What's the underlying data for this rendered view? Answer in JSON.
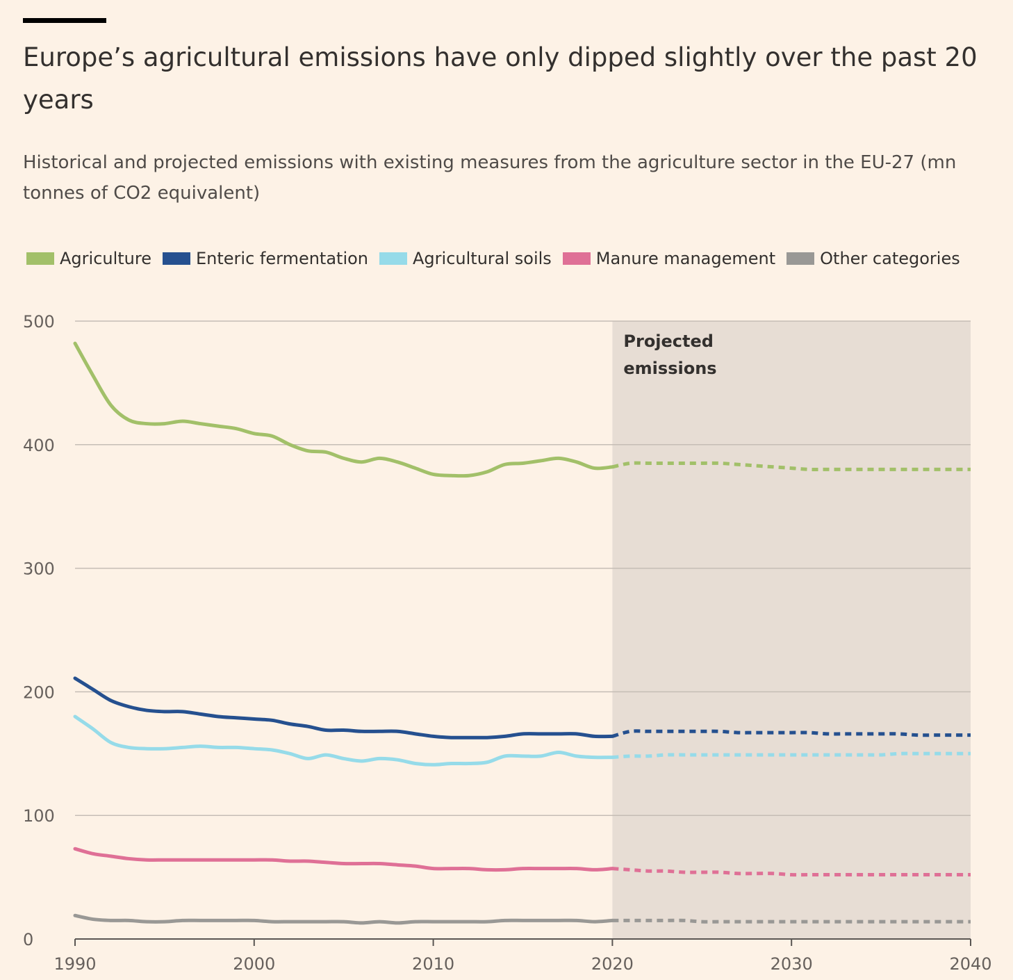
{
  "header": {
    "title": "Europe’s agricultural emissions have only dipped slightly over the past 20 years",
    "subtitle": "Historical and projected emissions with existing measures from the agriculture sector in the EU-27 (mn tonnes of CO2 equivalent)"
  },
  "chart_data": {
    "type": "line",
    "title": "Europe’s agricultural emissions have only dipped slightly over the past 20 years",
    "subtitle": "Historical and projected emissions with existing measures from the agriculture sector in the EU-27 (mn tonnes of CO2 equivalent)",
    "xlabel": "",
    "ylabel": "",
    "xlim": [
      1990,
      2040
    ],
    "ylim": [
      0,
      500
    ],
    "x_ticks": [
      "1990",
      "2000",
      "2010",
      "2020",
      "2030",
      "2040"
    ],
    "y_ticks": [
      "0",
      "100",
      "200",
      "300",
      "400",
      "500"
    ],
    "grid": "horizontal",
    "legend_position": "top-left",
    "projection_start": 2020,
    "projection_end": 2040,
    "annotation": "Projected emissions",
    "historical_x": [
      1990,
      1991,
      1992,
      1993,
      1994,
      1995,
      1996,
      1997,
      1998,
      1999,
      2000,
      2001,
      2002,
      2003,
      2004,
      2005,
      2006,
      2007,
      2008,
      2009,
      2010,
      2011,
      2012,
      2013,
      2014,
      2015,
      2016,
      2017,
      2018,
      2019,
      2020
    ],
    "projected_x": [
      2020,
      2021,
      2022,
      2023,
      2024,
      2025,
      2026,
      2027,
      2028,
      2029,
      2030,
      2031,
      2032,
      2033,
      2034,
      2035,
      2036,
      2037,
      2038,
      2039,
      2040
    ],
    "series": [
      {
        "name": "Agriculture",
        "color": "#a2c069",
        "historical": [
          482,
          456,
          432,
          420,
          417,
          417,
          419,
          417,
          415,
          413,
          409,
          407,
          400,
          395,
          394,
          389,
          386,
          389,
          386,
          381,
          376,
          375,
          375,
          378,
          384,
          385,
          387,
          389,
          386,
          381,
          382
        ],
        "projected": [
          382,
          385,
          385,
          385,
          385,
          385,
          385,
          384,
          383,
          382,
          381,
          380,
          380,
          380,
          380,
          380,
          380,
          380,
          380,
          380,
          380
        ]
      },
      {
        "name": "Enteric fermentation",
        "color": "#25508f",
        "historical": [
          211,
          202,
          193,
          188,
          185,
          184,
          184,
          182,
          180,
          179,
          178,
          177,
          174,
          172,
          169,
          169,
          168,
          168,
          168,
          166,
          164,
          163,
          163,
          163,
          164,
          166,
          166,
          166,
          166,
          164,
          164
        ],
        "projected": [
          164,
          168,
          168,
          168,
          168,
          168,
          168,
          167,
          167,
          167,
          167,
          167,
          166,
          166,
          166,
          166,
          166,
          165,
          165,
          165,
          165
        ]
      },
      {
        "name": "Agricultural soils",
        "color": "#96dbe9",
        "historical": [
          180,
          170,
          159,
          155,
          154,
          154,
          155,
          156,
          155,
          155,
          154,
          153,
          150,
          146,
          149,
          146,
          144,
          146,
          145,
          142,
          141,
          142,
          142,
          143,
          148,
          148,
          148,
          151,
          148,
          147,
          147
        ],
        "projected": [
          147,
          148,
          148,
          149,
          149,
          149,
          149,
          149,
          149,
          149,
          149,
          149,
          149,
          149,
          149,
          149,
          150,
          150,
          150,
          150,
          150
        ]
      },
      {
        "name": "Manure management",
        "color": "#df7096",
        "historical": [
          73,
          69,
          67,
          65,
          64,
          64,
          64,
          64,
          64,
          64,
          64,
          64,
          63,
          63,
          62,
          61,
          61,
          61,
          60,
          59,
          57,
          57,
          57,
          56,
          56,
          57,
          57,
          57,
          57,
          56,
          57
        ],
        "projected": [
          57,
          56,
          55,
          55,
          54,
          54,
          54,
          53,
          53,
          53,
          52,
          52,
          52,
          52,
          52,
          52,
          52,
          52,
          52,
          52,
          52
        ]
      },
      {
        "name": "Other categories",
        "color": "#999895",
        "historical": [
          19,
          16,
          15,
          15,
          14,
          14,
          15,
          15,
          15,
          15,
          15,
          14,
          14,
          14,
          14,
          14,
          13,
          14,
          13,
          14,
          14,
          14,
          14,
          14,
          15,
          15,
          15,
          15,
          15,
          14,
          15
        ],
        "projected": [
          15,
          15,
          15,
          15,
          15,
          14,
          14,
          14,
          14,
          14,
          14,
          14,
          14,
          14,
          14,
          14,
          14,
          14,
          14,
          14,
          14
        ]
      }
    ]
  },
  "colors": {
    "background": "#fdf2e6",
    "projection_shade": "#e7ddd4",
    "gridline": "#c5bdb5",
    "axis": "#5a5653"
  }
}
